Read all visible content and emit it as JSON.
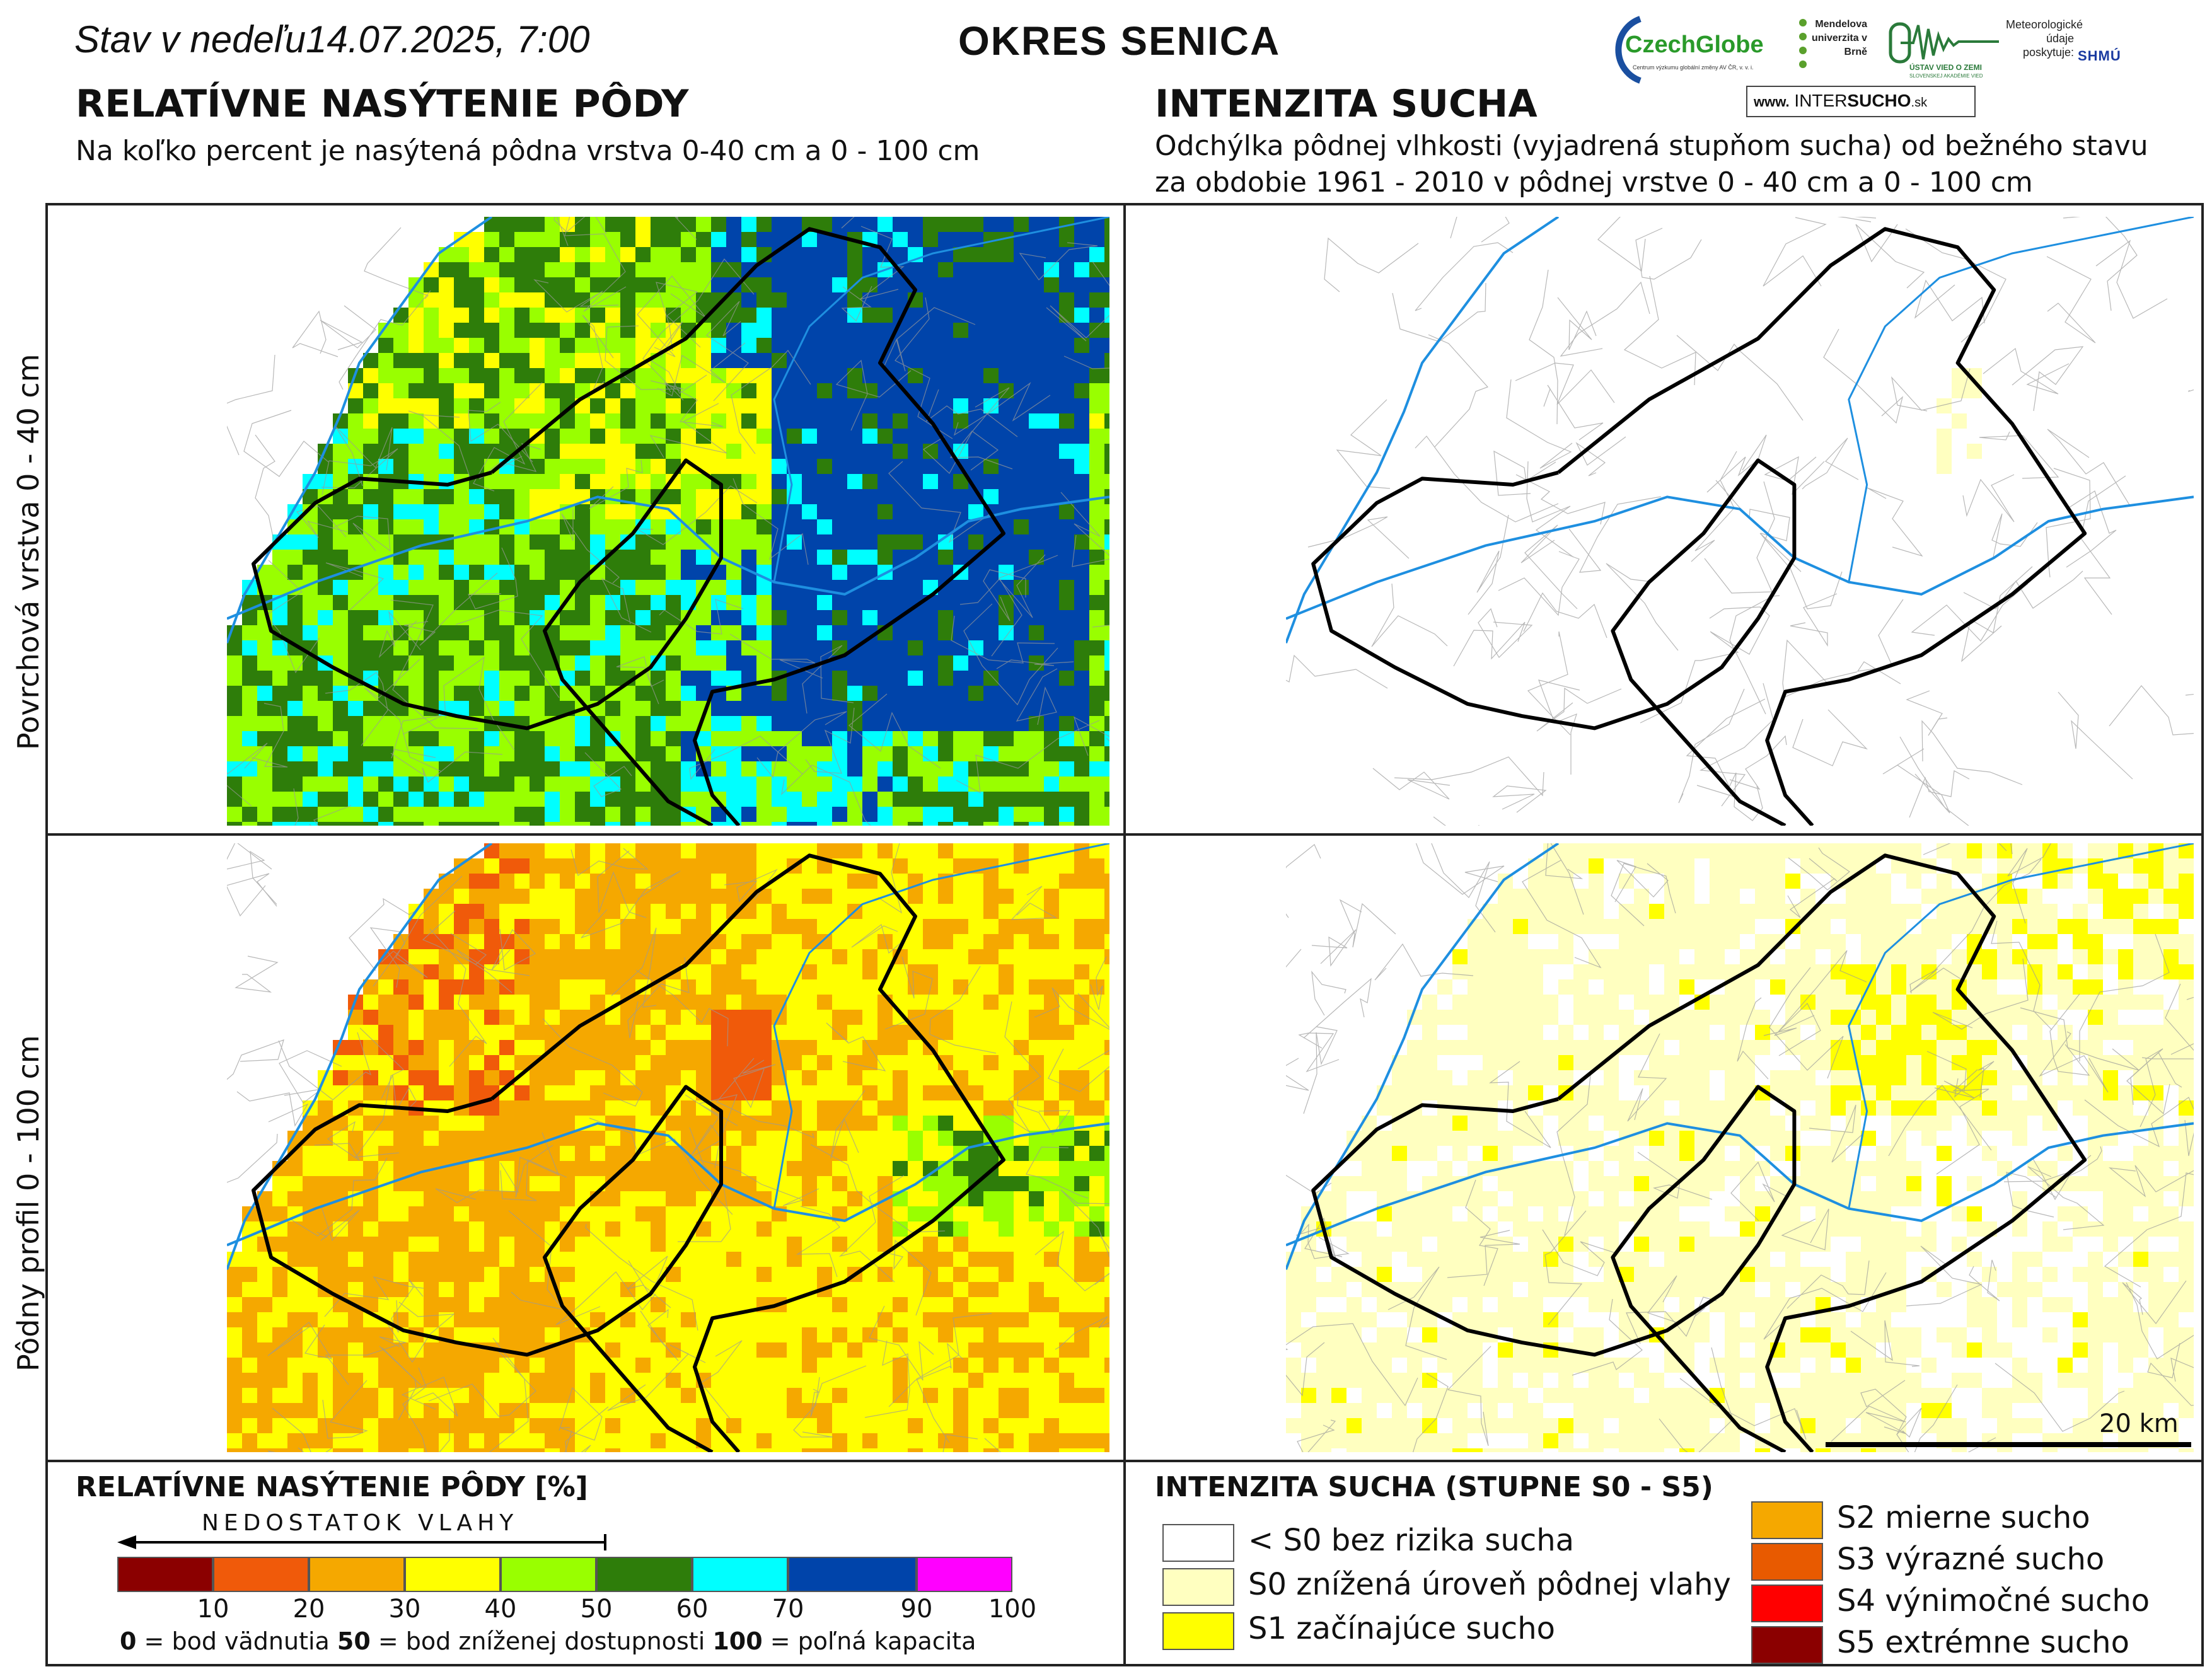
{
  "header": {
    "date_prefix": "Stav v nedeľu",
    "date": "14.07.2025, 7:00",
    "district": "OKRES SENICA"
  },
  "left_section": {
    "title": "RELATÍVNE NASÝTENIE PÔDY",
    "subtitle": "Na koľko percent je nasýtená pôdna vrstva 0-40 cm a 0 - 100 cm"
  },
  "right_section": {
    "title": "INTENZITA SUCHA",
    "subtitle_line1": "Odchýlka pôdnej vlhkosti (vyjadrená stupňom sucha) od bežného stavu",
    "subtitle_line2": "za obdobie 1961 - 2010 v pôdnej vrstve 0 - 40 cm a 0 - 100 cm"
  },
  "logos": {
    "czechglobe": "CzechGlobe",
    "czechglobe_sub": "Centrum výzkumu globální změny AV ČR, v. v. i.",
    "mendelu": "Mendelova univerzita v Brně",
    "uvz": "ÚSTAV VIED O ZEMI",
    "uvz_sub": "SLOVENSKEJ AKADÉMIE VIED",
    "meteo_line1": "Meteorologické",
    "meteo_line2": "údaje",
    "meteo_line3": "poskytuje:",
    "shmu": "SHMÚ",
    "intersucho_prefix": "www.",
    "intersucho_a": "INTER",
    "intersucho_b": "SUCHO",
    "intersucho_suffix": ".sk"
  },
  "row_labels": {
    "top": "Povrchová vrstva 0 - 40 cm",
    "bottom": "Pôdny profil 0 - 100 cm"
  },
  "scale": {
    "label": "20 km"
  },
  "saturation_legend": {
    "title": "RELATÍVNE NASÝTENIE PÔDY [%]",
    "arrow_label": "NEDOSTATOK VLAHY",
    "classes": [
      {
        "from": 0,
        "to": 10,
        "color": "#8b0000"
      },
      {
        "from": 10,
        "to": 20,
        "color": "#f05a0a"
      },
      {
        "from": 20,
        "to": 30,
        "color": "#f5a800"
      },
      {
        "from": 30,
        "to": 40,
        "color": "#ffff00"
      },
      {
        "from": 40,
        "to": 50,
        "color": "#99ff00"
      },
      {
        "from": 50,
        "to": 60,
        "color": "#2e7d0a"
      },
      {
        "from": 60,
        "to": 70,
        "color": "#00ffff"
      },
      {
        "from": 70,
        "to": 90,
        "color": "#0044aa"
      },
      {
        "from": 90,
        "to": 100,
        "color": "#ff00ff"
      }
    ],
    "ticks": [
      "10",
      "20",
      "30",
      "40",
      "50",
      "60",
      "70",
      "90",
      "100"
    ],
    "note_0": "0",
    "note_0_text": " = bod vädnutia   ",
    "note_50": "50",
    "note_50_text": " = bod zníženej dostupnosti   ",
    "note_100": "100",
    "note_100_text": " = poľná kapacita"
  },
  "drought_legend": {
    "title": "INTENZITA SUCHA (STUPNE S0 - S5)",
    "items": [
      {
        "label": "< S0 bez rizika sucha",
        "color": "#ffffff"
      },
      {
        "label": "S0 znížená úroveň pôdnej vlahy",
        "color": "#ffffc0"
      },
      {
        "label": "S1 začínajúce sucho",
        "color": "#ffff00"
      },
      {
        "label": "S2 mierne sucho",
        "color": "#f5a800"
      },
      {
        "label": "S3 výrazné sucho",
        "color": "#e85a00"
      },
      {
        "label": "S4 výnimočné sucho",
        "color": "#ff0000"
      },
      {
        "label": "S5 extrémne sucho",
        "color": "#8b0000"
      }
    ]
  },
  "maps": {
    "topsoil_saturation_dominant": "40-60 %",
    "profile_saturation_dominant": "20-40 %",
    "topsoil_drought_dominant": "< S0",
    "profile_drought_dominant": "S0"
  }
}
